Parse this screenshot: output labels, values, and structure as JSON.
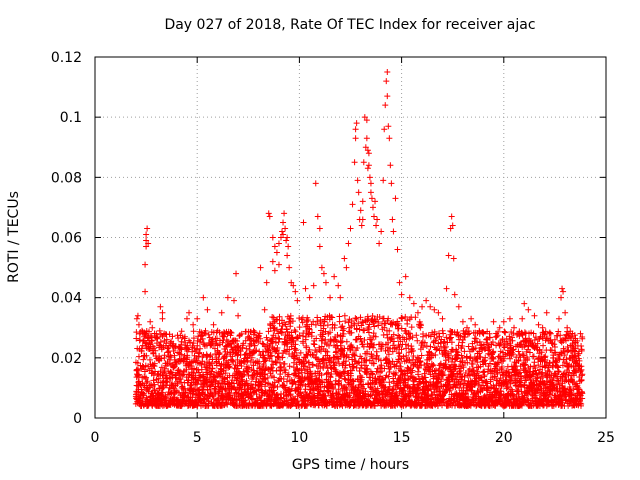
{
  "chart_data": {
    "type": "scatter",
    "title": "Day 027 of 2018, Rate Of TEC Index for receiver ajac",
    "xlabel": "GPS time / hours",
    "ylabel": "ROTI / TECUs",
    "xlim": [
      0,
      25
    ],
    "ylim": [
      0,
      0.12
    ],
    "xticks": [
      0,
      5,
      10,
      15,
      20,
      25
    ],
    "yticks": [
      0,
      0.02,
      0.04,
      0.06,
      0.08,
      0.1,
      0.12
    ],
    "xtick_labels": [
      "0",
      "5",
      "10",
      "15",
      "20",
      "25"
    ],
    "ytick_labels": [
      "0",
      "0.02",
      "0.04",
      "0.06",
      "0.08",
      "0.1",
      "0.12"
    ],
    "grid": true,
    "marker": "+",
    "series": [
      {
        "color": "#ff0000",
        "points": [
          [
            2.05,
            0.033
          ],
          [
            2.1,
            0.034
          ],
          [
            2.15,
            0.031
          ],
          [
            2.2,
            0.028
          ],
          [
            2.3,
            0.029
          ],
          [
            2.4,
            0.027
          ],
          [
            2.45,
            0.042
          ],
          [
            2.45,
            0.051
          ],
          [
            2.5,
            0.057
          ],
          [
            2.5,
            0.059
          ],
          [
            2.5,
            0.061
          ],
          [
            2.55,
            0.063
          ],
          [
            2.6,
            0.058
          ],
          [
            2.7,
            0.032
          ],
          [
            2.8,
            0.03
          ],
          [
            3.0,
            0.028
          ],
          [
            3.2,
            0.037
          ],
          [
            3.3,
            0.035
          ],
          [
            3.3,
            0.033
          ],
          [
            4.2,
            0.023
          ],
          [
            4.4,
            0.027
          ],
          [
            4.5,
            0.033
          ],
          [
            4.6,
            0.035
          ],
          [
            4.8,
            0.031
          ],
          [
            5.0,
            0.033
          ],
          [
            5.3,
            0.04
          ],
          [
            5.5,
            0.036
          ],
          [
            5.8,
            0.031
          ],
          [
            6.0,
            0.029
          ],
          [
            6.2,
            0.035
          ],
          [
            6.5,
            0.04
          ],
          [
            6.8,
            0.039
          ],
          [
            6.9,
            0.048
          ],
          [
            7.0,
            0.034
          ],
          [
            7.5,
            0.027
          ],
          [
            7.8,
            0.024
          ],
          [
            8.0,
            0.027
          ],
          [
            8.1,
            0.05
          ],
          [
            8.3,
            0.036
          ],
          [
            8.4,
            0.045
          ],
          [
            8.5,
            0.068
          ],
          [
            8.55,
            0.067
          ],
          [
            8.7,
            0.06
          ],
          [
            8.7,
            0.052
          ],
          [
            8.8,
            0.057
          ],
          [
            8.8,
            0.049
          ],
          [
            8.9,
            0.055
          ],
          [
            9.0,
            0.051
          ],
          [
            9.0,
            0.058
          ],
          [
            9.1,
            0.06
          ],
          [
            9.15,
            0.062
          ],
          [
            9.2,
            0.065
          ],
          [
            9.2,
            0.061
          ],
          [
            9.25,
            0.068
          ],
          [
            9.3,
            0.063
          ],
          [
            9.35,
            0.059
          ],
          [
            9.4,
            0.06
          ],
          [
            9.4,
            0.054
          ],
          [
            9.45,
            0.057
          ],
          [
            9.5,
            0.05
          ],
          [
            9.6,
            0.045
          ],
          [
            9.7,
            0.044
          ],
          [
            9.8,
            0.042
          ],
          [
            9.9,
            0.039
          ],
          [
            10.2,
            0.065
          ],
          [
            10.3,
            0.043
          ],
          [
            10.5,
            0.04
          ],
          [
            10.7,
            0.044
          ],
          [
            10.8,
            0.078
          ],
          [
            10.9,
            0.067
          ],
          [
            11.0,
            0.063
          ],
          [
            11.0,
            0.057
          ],
          [
            11.1,
            0.05
          ],
          [
            11.2,
            0.048
          ],
          [
            11.3,
            0.045
          ],
          [
            11.5,
            0.04
          ],
          [
            11.7,
            0.047
          ],
          [
            11.9,
            0.044
          ],
          [
            12.0,
            0.04
          ],
          [
            12.2,
            0.053
          ],
          [
            12.3,
            0.05
          ],
          [
            12.4,
            0.058
          ],
          [
            12.5,
            0.063
          ],
          [
            12.6,
            0.071
          ],
          [
            12.7,
            0.085
          ],
          [
            12.75,
            0.093
          ],
          [
            12.75,
            0.096
          ],
          [
            12.8,
            0.098
          ],
          [
            12.85,
            0.079
          ],
          [
            12.9,
            0.075
          ],
          [
            12.95,
            0.066
          ],
          [
            13.0,
            0.069
          ],
          [
            13.05,
            0.064
          ],
          [
            13.1,
            0.072
          ],
          [
            13.1,
            0.066
          ],
          [
            13.15,
            0.085
          ],
          [
            13.2,
            0.1
          ],
          [
            13.25,
            0.09
          ],
          [
            13.3,
            0.099
          ],
          [
            13.3,
            0.093
          ],
          [
            13.35,
            0.083
          ],
          [
            13.35,
            0.089
          ],
          [
            13.4,
            0.088
          ],
          [
            13.4,
            0.084
          ],
          [
            13.45,
            0.08
          ],
          [
            13.5,
            0.078
          ],
          [
            13.5,
            0.075
          ],
          [
            13.55,
            0.073
          ],
          [
            13.6,
            0.07
          ],
          [
            13.65,
            0.067
          ],
          [
            13.7,
            0.072
          ],
          [
            13.75,
            0.064
          ],
          [
            13.8,
            0.066
          ],
          [
            13.9,
            0.058
          ],
          [
            14.0,
            0.062
          ],
          [
            14.1,
            0.079
          ],
          [
            14.15,
            0.096
          ],
          [
            14.2,
            0.104
          ],
          [
            14.25,
            0.112
          ],
          [
            14.3,
            0.115
          ],
          [
            14.3,
            0.107
          ],
          [
            14.35,
            0.097
          ],
          [
            14.4,
            0.093
          ],
          [
            14.45,
            0.084
          ],
          [
            14.5,
            0.078
          ],
          [
            14.55,
            0.066
          ],
          [
            14.6,
            0.062
          ],
          [
            14.7,
            0.073
          ],
          [
            14.8,
            0.056
          ],
          [
            14.9,
            0.045
          ],
          [
            15.0,
            0.041
          ],
          [
            15.2,
            0.047
          ],
          [
            15.4,
            0.04
          ],
          [
            15.6,
            0.038
          ],
          [
            15.8,
            0.035
          ],
          [
            16.0,
            0.037
          ],
          [
            16.2,
            0.039
          ],
          [
            16.4,
            0.037
          ],
          [
            16.6,
            0.036
          ],
          [
            16.8,
            0.035
          ],
          [
            17.0,
            0.033
          ],
          [
            17.2,
            0.043
          ],
          [
            17.3,
            0.054
          ],
          [
            17.4,
            0.063
          ],
          [
            17.45,
            0.067
          ],
          [
            17.5,
            0.064
          ],
          [
            17.55,
            0.053
          ],
          [
            17.6,
            0.041
          ],
          [
            17.8,
            0.037
          ],
          [
            18.0,
            0.032
          ],
          [
            18.2,
            0.03
          ],
          [
            18.4,
            0.033
          ],
          [
            18.6,
            0.031
          ],
          [
            18.8,
            0.029
          ],
          [
            19.0,
            0.028
          ],
          [
            19.3,
            0.028
          ],
          [
            19.5,
            0.032
          ],
          [
            19.8,
            0.03
          ],
          [
            20.0,
            0.032
          ],
          [
            20.3,
            0.033
          ],
          [
            20.5,
            0.03
          ],
          [
            20.7,
            0.028
          ],
          [
            20.9,
            0.033
          ],
          [
            21.0,
            0.038
          ],
          [
            21.2,
            0.036
          ],
          [
            21.5,
            0.034
          ],
          [
            21.7,
            0.031
          ],
          [
            21.9,
            0.03
          ],
          [
            22.1,
            0.035
          ],
          [
            22.3,
            0.028
          ],
          [
            22.5,
            0.026
          ],
          [
            22.7,
            0.033
          ],
          [
            22.8,
            0.04
          ],
          [
            22.85,
            0.043
          ],
          [
            22.9,
            0.042
          ],
          [
            23.0,
            0.035
          ],
          [
            23.1,
            0.03
          ],
          [
            23.3,
            0.027
          ],
          [
            23.5,
            0.023
          ],
          [
            23.7,
            0.019
          ],
          [
            23.8,
            0.016
          ]
        ]
      }
    ]
  }
}
